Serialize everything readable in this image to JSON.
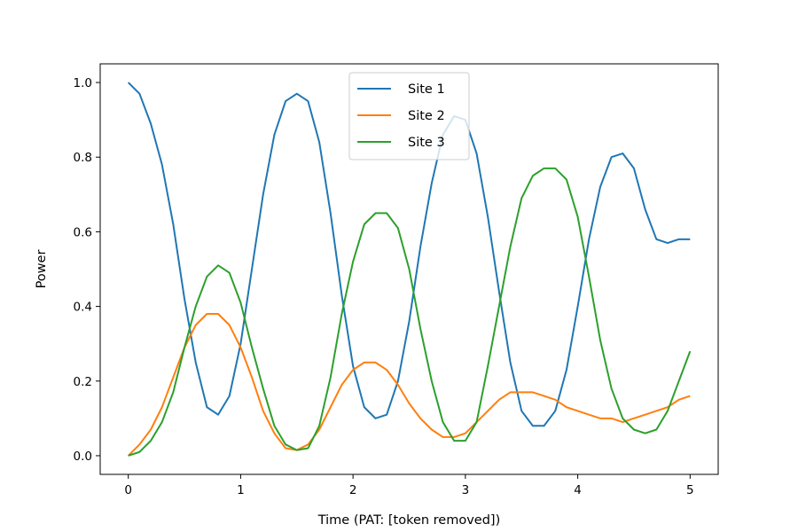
{
  "chart_data": {
    "type": "line",
    "xlabel": "Time (PAT: [token removed])",
    "ylabel": "Power",
    "xlim": [
      -0.25,
      5.25
    ],
    "ylim": [
      -0.05,
      1.05
    ],
    "xticks": [
      0,
      1,
      2,
      3,
      4,
      5
    ],
    "yticks": [
      0.0,
      0.2,
      0.4,
      0.6,
      0.8,
      1.0
    ],
    "xtick_labels": [
      "0",
      "1",
      "2",
      "3",
      "4",
      "5"
    ],
    "ytick_labels": [
      "0.0",
      "0.2",
      "0.4",
      "0.6",
      "0.8",
      "1.0"
    ],
    "grid": false,
    "legend": "upper center",
    "x": [
      0,
      0.1,
      0.2,
      0.3,
      0.4,
      0.5,
      0.6,
      0.7,
      0.8,
      0.9,
      1.0,
      1.1,
      1.2,
      1.3,
      1.4,
      1.5,
      1.6,
      1.7,
      1.8,
      1.9,
      2.0,
      2.1,
      2.2,
      2.3,
      2.4,
      2.5,
      2.6,
      2.7,
      2.8,
      2.9,
      3.0,
      3.1,
      3.2,
      3.3,
      3.4,
      3.5,
      3.6,
      3.7,
      3.8,
      3.9,
      4.0,
      4.1,
      4.2,
      4.3,
      4.4,
      4.5,
      4.6,
      4.7,
      4.8,
      4.9,
      5.0
    ],
    "series": [
      {
        "name": "Site 1",
        "color": "#1f77b4",
        "values": [
          1.0,
          0.97,
          0.89,
          0.78,
          0.62,
          0.42,
          0.25,
          0.13,
          0.11,
          0.16,
          0.3,
          0.5,
          0.7,
          0.86,
          0.95,
          0.97,
          0.95,
          0.84,
          0.65,
          0.43,
          0.24,
          0.13,
          0.1,
          0.11,
          0.2,
          0.36,
          0.56,
          0.73,
          0.86,
          0.91,
          0.9,
          0.81,
          0.64,
          0.44,
          0.25,
          0.12,
          0.08,
          0.08,
          0.12,
          0.23,
          0.4,
          0.58,
          0.72,
          0.8,
          0.81,
          0.77,
          0.66,
          0.58,
          0.57,
          0.58,
          0.58
        ]
      },
      {
        "name": "Site 2",
        "color": "#ff7f0e",
        "values": [
          0.0,
          0.03,
          0.07,
          0.13,
          0.21,
          0.29,
          0.35,
          0.38,
          0.38,
          0.35,
          0.29,
          0.21,
          0.12,
          0.06,
          0.02,
          0.015,
          0.03,
          0.07,
          0.13,
          0.19,
          0.23,
          0.25,
          0.25,
          0.23,
          0.19,
          0.14,
          0.1,
          0.07,
          0.05,
          0.05,
          0.06,
          0.09,
          0.12,
          0.15,
          0.17,
          0.17,
          0.17,
          0.16,
          0.15,
          0.13,
          0.12,
          0.11,
          0.1,
          0.1,
          0.09,
          0.1,
          0.11,
          0.12,
          0.13,
          0.15,
          0.16
        ]
      },
      {
        "name": "Site 3",
        "color": "#2ca02c",
        "values": [
          0.0,
          0.01,
          0.04,
          0.09,
          0.17,
          0.29,
          0.4,
          0.48,
          0.51,
          0.49,
          0.41,
          0.29,
          0.18,
          0.08,
          0.03,
          0.015,
          0.02,
          0.08,
          0.21,
          0.38,
          0.52,
          0.62,
          0.65,
          0.65,
          0.61,
          0.5,
          0.34,
          0.2,
          0.09,
          0.04,
          0.04,
          0.09,
          0.24,
          0.4,
          0.56,
          0.69,
          0.75,
          0.77,
          0.77,
          0.74,
          0.64,
          0.48,
          0.31,
          0.18,
          0.1,
          0.07,
          0.06,
          0.07,
          0.12,
          0.2,
          0.28
        ]
      }
    ]
  }
}
